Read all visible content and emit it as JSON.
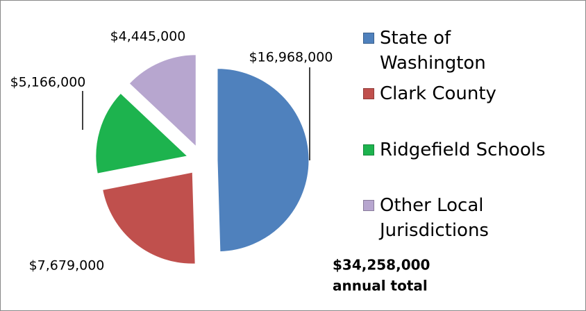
{
  "chart_data": {
    "type": "pie",
    "categories": [
      "State of Washington",
      "Clark County",
      "Ridgefield Schools",
      "Other Local Jurisdictions"
    ],
    "values": [
      16968000,
      7679000,
      5166000,
      4445000
    ],
    "value_labels": [
      "$16,968,000",
      "$7,679,000",
      "$5,166,000",
      "$4,445,000"
    ],
    "colors": [
      "#4f81bd",
      "#c0504d",
      "#1db34e",
      "#b7a6cf"
    ],
    "annotation": [
      "$34,258,000",
      "annual total"
    ],
    "legend": "right"
  }
}
